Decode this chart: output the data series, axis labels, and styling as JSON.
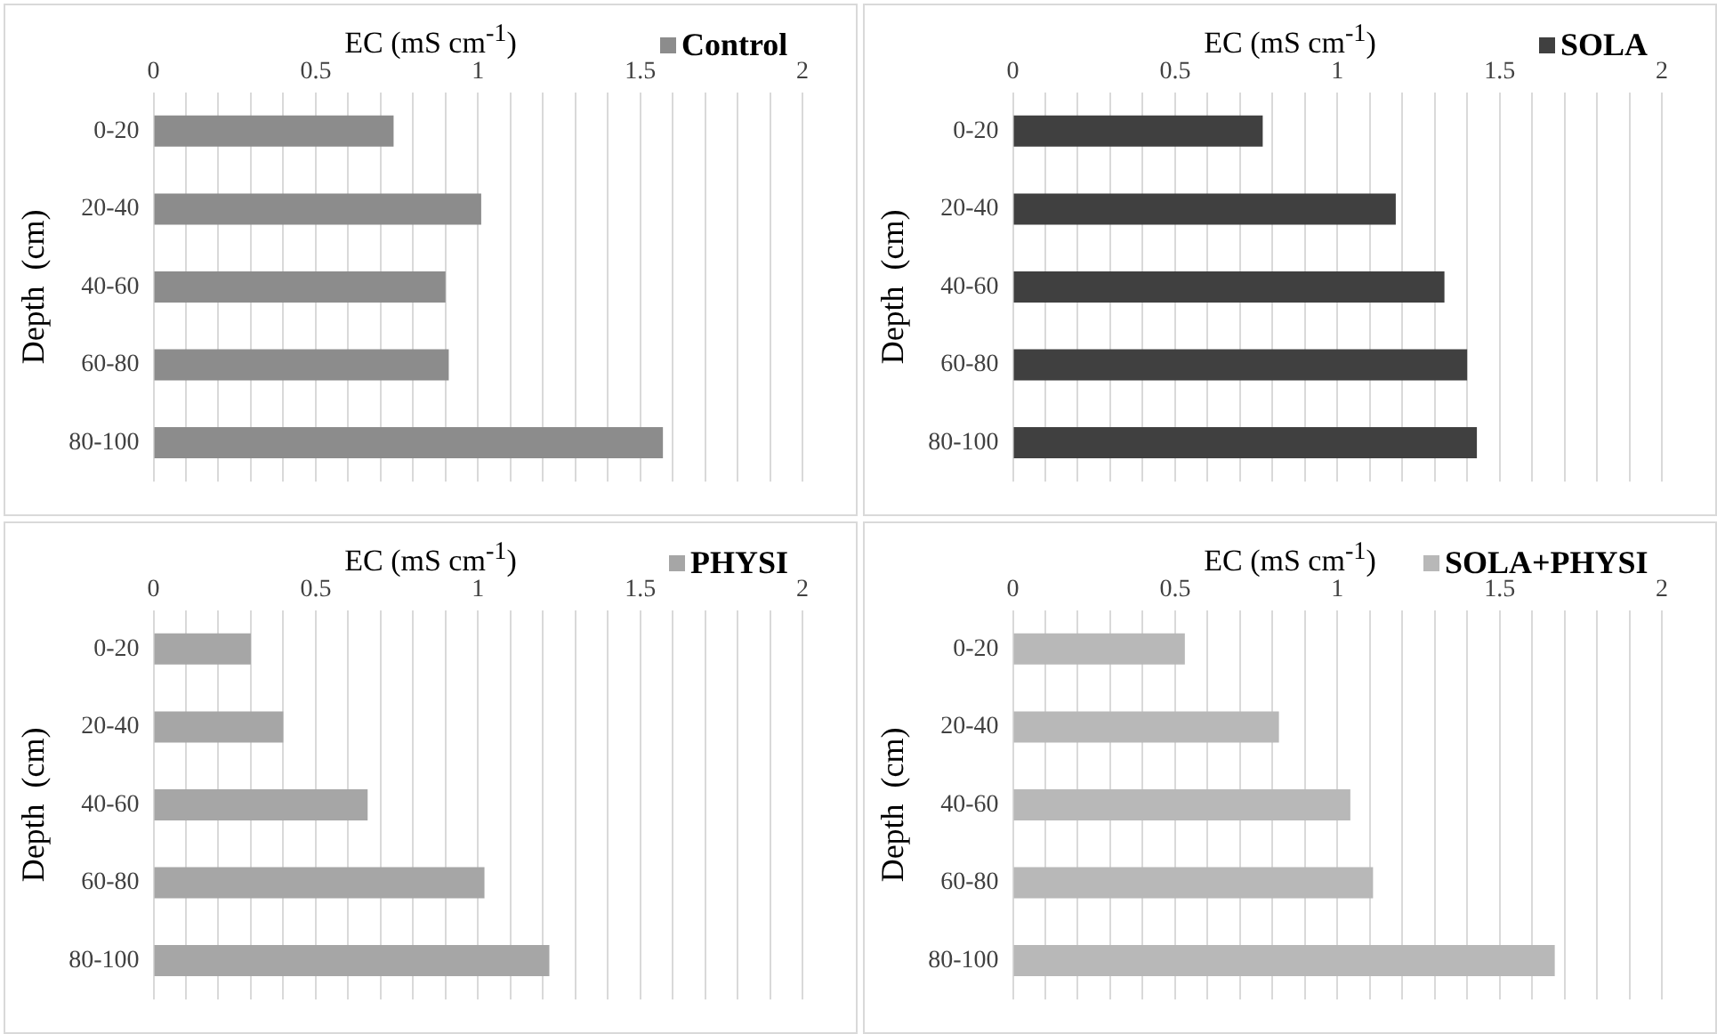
{
  "chart_data": [
    {
      "type": "bar",
      "orientation": "horizontal",
      "xlabel": "EC (mS cm$^{-1}$)",
      "ylabel": "Depth  (cm)",
      "categories": [
        "0-20",
        "20-40",
        "40-60",
        "60-80",
        "80-100"
      ],
      "xlim": [
        0,
        2
      ],
      "xticks": [
        0,
        {
          "value": 0.1,
          "label": null
        },
        {
          "value": 0.2,
          "label": null
        },
        {
          "value": 0.3,
          "label": null
        },
        {
          "value": 0.4,
          "label": null
        },
        0.5,
        {
          "value": 0.6,
          "label": null
        },
        {
          "value": 0.7,
          "label": null
        },
        {
          "value": 0.8,
          "label": null
        },
        {
          "value": 0.9,
          "label": null
        },
        1,
        {
          "value": 1.1,
          "label": null
        },
        {
          "value": 1.2,
          "label": null
        },
        {
          "value": 1.3,
          "label": null
        },
        {
          "value": 1.4,
          "label": null
        },
        1.5,
        {
          "value": 1.6,
          "label": null
        },
        {
          "value": 1.7,
          "label": null
        },
        {
          "value": 1.8,
          "label": null
        },
        {
          "value": 1.9,
          "label": null
        },
        2
      ],
      "grid": "x",
      "legend": "top right",
      "series": [
        {
          "name": "Control",
          "color": "#8c8c8c",
          "values": [
            0.74,
            1.01,
            0.9,
            0.91,
            1.57
          ]
        }
      ]
    },
    {
      "type": "bar",
      "orientation": "horizontal",
      "xlabel": "EC (mS cm$^{-1}$)",
      "ylabel": "Depth  (cm)",
      "categories": [
        "0-20",
        "20-40",
        "40-60",
        "60-80",
        "80-100"
      ],
      "xlim": [
        0,
        2
      ],
      "xticks": [
        0,
        {
          "value": 0.1,
          "label": null
        },
        {
          "value": 0.2,
          "label": null
        },
        {
          "value": 0.3,
          "label": null
        },
        {
          "value": 0.4,
          "label": null
        },
        0.5,
        {
          "value": 0.6,
          "label": null
        },
        {
          "value": 0.7,
          "label": null
        },
        {
          "value": 0.8,
          "label": null
        },
        {
          "value": 0.9,
          "label": null
        },
        1,
        {
          "value": 1.1,
          "label": null
        },
        {
          "value": 1.2,
          "label": null
        },
        {
          "value": 1.3,
          "label": null
        },
        {
          "value": 1.4,
          "label": null
        },
        1.5,
        {
          "value": 1.6,
          "label": null
        },
        {
          "value": 1.7,
          "label": null
        },
        {
          "value": 1.8,
          "label": null
        },
        {
          "value": 1.9,
          "label": null
        },
        2
      ],
      "grid": "x",
      "legend": "top right",
      "series": [
        {
          "name": "SOLA",
          "color": "#404040",
          "values": [
            0.77,
            1.18,
            1.33,
            1.4,
            1.43
          ]
        }
      ]
    },
    {
      "type": "bar",
      "orientation": "horizontal",
      "xlabel": "EC (mS cm$^{-1}$)",
      "ylabel": "Depth  (cm)",
      "categories": [
        "0-20",
        "20-40",
        "40-60",
        "60-80",
        "80-100"
      ],
      "xlim": [
        0,
        2
      ],
      "xticks": [
        0,
        {
          "value": 0.1,
          "label": null
        },
        {
          "value": 0.2,
          "label": null
        },
        {
          "value": 0.3,
          "label": null
        },
        {
          "value": 0.4,
          "label": null
        },
        0.5,
        {
          "value": 0.6,
          "label": null
        },
        {
          "value": 0.7,
          "label": null
        },
        {
          "value": 0.8,
          "label": null
        },
        {
          "value": 0.9,
          "label": null
        },
        1,
        {
          "value": 1.1,
          "label": null
        },
        {
          "value": 1.2,
          "label": null
        },
        {
          "value": 1.3,
          "label": null
        },
        {
          "value": 1.4,
          "label": null
        },
        1.5,
        {
          "value": 1.6,
          "label": null
        },
        {
          "value": 1.7,
          "label": null
        },
        {
          "value": 1.8,
          "label": null
        },
        {
          "value": 1.9,
          "label": null
        },
        2
      ],
      "grid": "x",
      "legend": "top right",
      "series": [
        {
          "name": "PHYSI",
          "color": "#a6a6a6",
          "values": [
            0.3,
            0.4,
            0.66,
            1.02,
            1.22
          ]
        }
      ]
    },
    {
      "type": "bar",
      "orientation": "horizontal",
      "xlabel": "EC (mS cm$^{-1}$)",
      "ylabel": "Depth  (cm)",
      "categories": [
        "0-20",
        "20-40",
        "40-60",
        "60-80",
        "80-100"
      ],
      "xlim": [
        0,
        2
      ],
      "xticks": [
        0,
        {
          "value": 0.1,
          "label": null
        },
        {
          "value": 0.2,
          "label": null
        },
        {
          "value": 0.3,
          "label": null
        },
        {
          "value": 0.4,
          "label": null
        },
        0.5,
        {
          "value": 0.6,
          "label": null
        },
        {
          "value": 0.7,
          "label": null
        },
        {
          "value": 0.8,
          "label": null
        },
        {
          "value": 0.9,
          "label": null
        },
        1,
        {
          "value": 1.1,
          "label": null
        },
        {
          "value": 1.2,
          "label": null
        },
        {
          "value": 1.3,
          "label": null
        },
        {
          "value": 1.4,
          "label": null
        },
        1.5,
        {
          "value": 1.6,
          "label": null
        },
        {
          "value": 1.7,
          "label": null
        },
        {
          "value": 1.8,
          "label": null
        },
        {
          "value": 1.9,
          "label": null
        },
        2
      ],
      "grid": "x",
      "legend": "top right",
      "series": [
        {
          "name": "SOLA+PHYSI",
          "color": "#b8b8b8",
          "values": [
            0.53,
            0.82,
            1.04,
            1.11,
            1.67
          ]
        }
      ]
    }
  ]
}
